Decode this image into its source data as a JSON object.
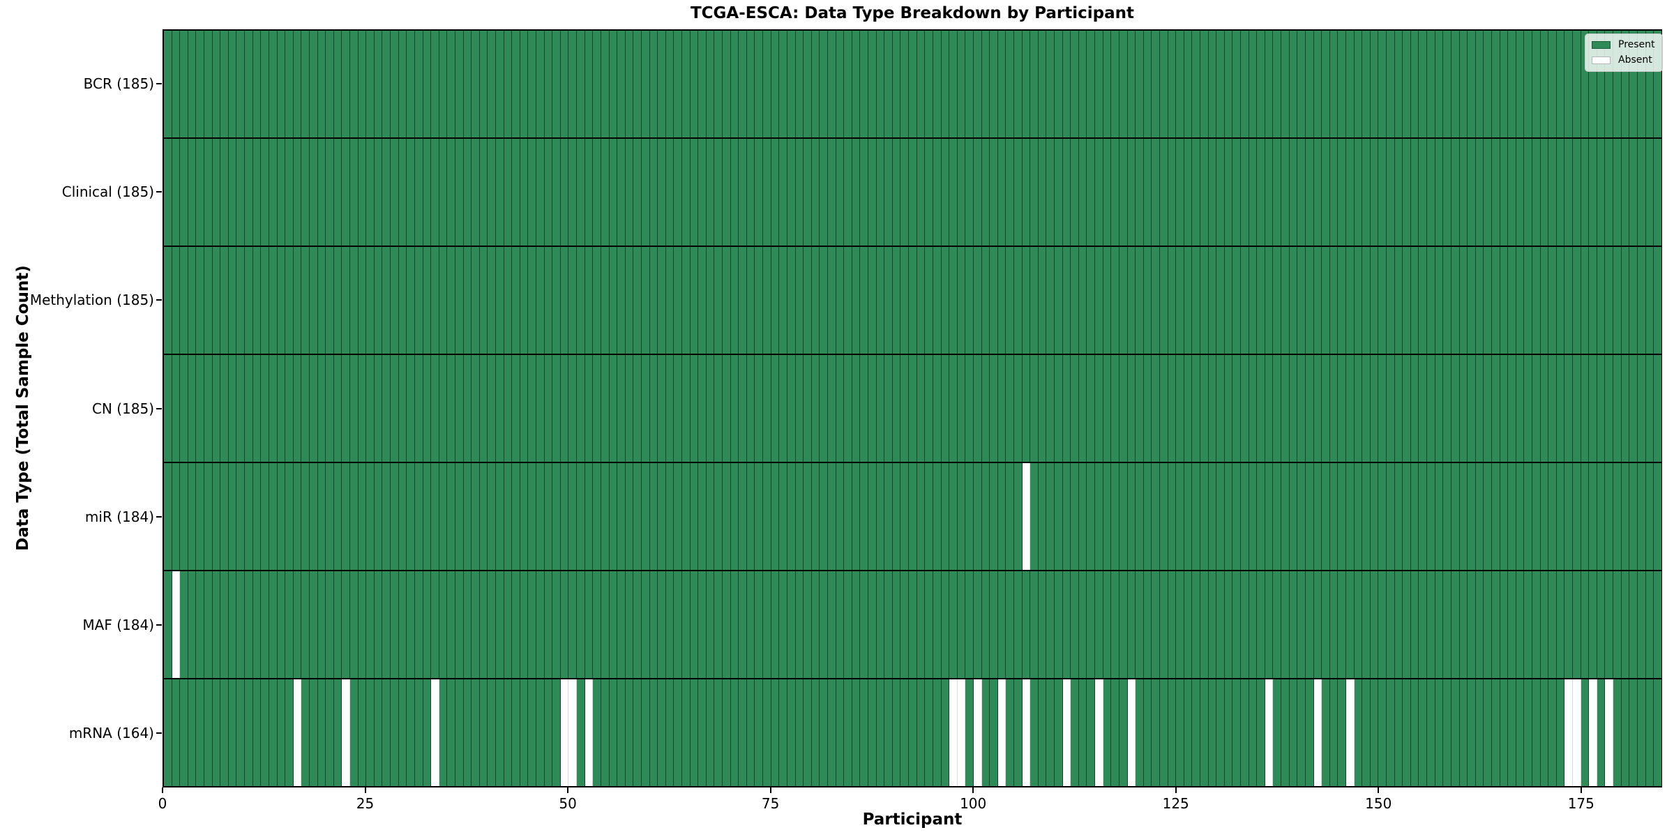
{
  "chart_data": {
    "type": "heatmap",
    "title": "TCGA-ESCA: Data Type Breakdown by Participant",
    "xlabel": "Participant",
    "ylabel": "Data Type (Total Sample Count)",
    "n_participants": 185,
    "x_ticks": [
      0,
      25,
      50,
      75,
      100,
      125,
      150,
      175
    ],
    "grid": "per-participant cell edges, black row separators",
    "rows": [
      {
        "data_type": "BCR",
        "label": "BCR (185)",
        "present_count": 185,
        "absent_participants": []
      },
      {
        "data_type": "Clinical",
        "label": "Clinical (185)",
        "present_count": 185,
        "absent_participants": []
      },
      {
        "data_type": "Methylation",
        "label": "Methylation (185)",
        "present_count": 185,
        "absent_participants": []
      },
      {
        "data_type": "CN",
        "label": "CN (185)",
        "present_count": 185,
        "absent_participants": []
      },
      {
        "data_type": "miR",
        "label": "miR (184)",
        "present_count": 184,
        "absent_participants": [
          106
        ]
      },
      {
        "data_type": "MAF",
        "label": "MAF (184)",
        "present_count": 184,
        "absent_participants": [
          1
        ]
      },
      {
        "data_type": "mRNA",
        "label": "mRNA (164)",
        "present_count": 164,
        "absent_participants": [
          16,
          22,
          33,
          49,
          50,
          52,
          97,
          98,
          100,
          103,
          106,
          111,
          115,
          119,
          136,
          142,
          146,
          173,
          174,
          176,
          178
        ]
      }
    ],
    "legend": {
      "position": "upper right",
      "entries": [
        {
          "label": "Present",
          "color": "#2e8b57"
        },
        {
          "label": "Absent",
          "color": "#ffffff"
        }
      ]
    },
    "colors": {
      "present": "#2e8b57",
      "absent": "#ffffff",
      "cell_edge": "#12301e",
      "row_separator": "#000000",
      "legend_background": "rgba(255,255,255,0.8)"
    }
  }
}
